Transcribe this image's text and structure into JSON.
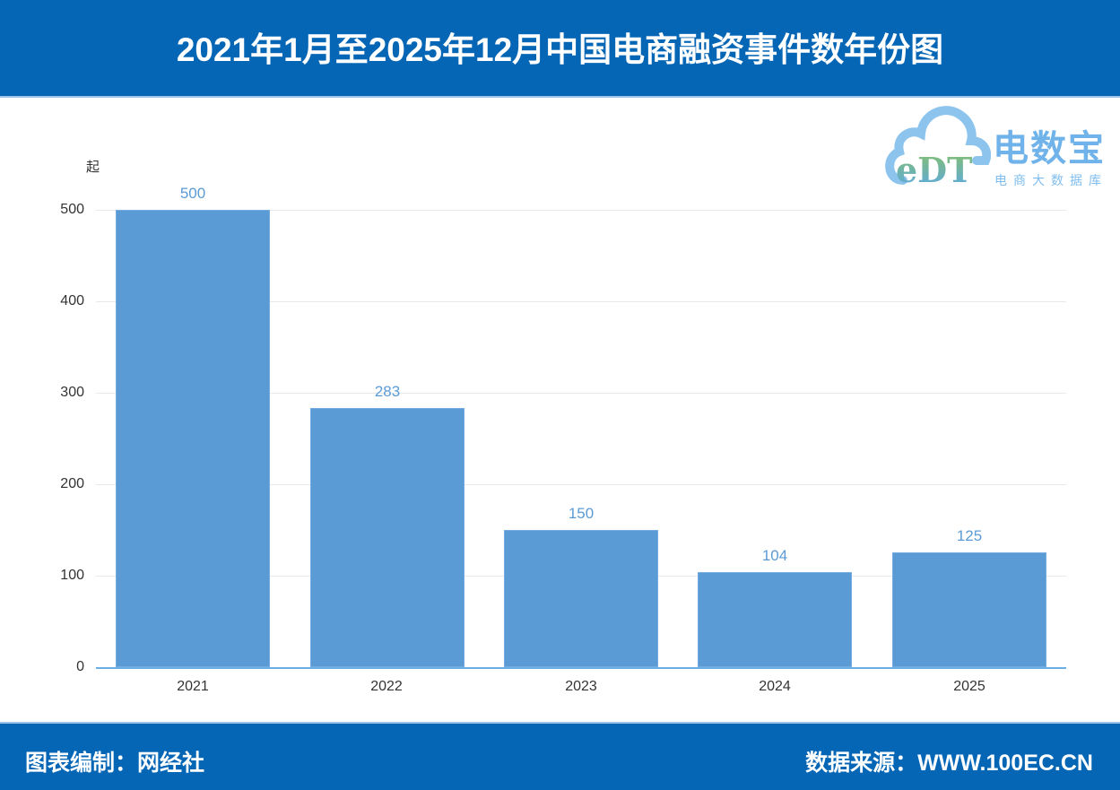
{
  "header": {
    "title": "2021年1月至2025年12月中国电商融资事件数年份图"
  },
  "logo": {
    "icon": "cloud-edt-icon",
    "mark_text": "eDT",
    "brand": "电数宝",
    "subtitle": "电商大数据库"
  },
  "footer": {
    "credit": "图表编制：网经社",
    "source": "数据来源：WWW.100EC.CN"
  },
  "colors": {
    "header_bg": "#0566b6",
    "bar": "#5b9bd5",
    "bar_label": "#5b9bd5",
    "axis_line": "#6aaee3",
    "gridline": "#e8e8e8"
  },
  "chart_data": {
    "type": "bar",
    "title": "2021年1月至2025年12月中国电商融资事件数年份图",
    "xlabel": "",
    "ylabel": "起",
    "categories": [
      "2021",
      "2022",
      "2023",
      "2024",
      "2025"
    ],
    "values": [
      500,
      283,
      150,
      104,
      125
    ],
    "data_labels": [
      "500",
      "283",
      "150",
      "104",
      "125"
    ],
    "yticks": [
      "0",
      "100",
      "200",
      "300",
      "400",
      "500"
    ],
    "ylim": [
      0,
      500
    ],
    "grid": true,
    "legend": "none"
  }
}
